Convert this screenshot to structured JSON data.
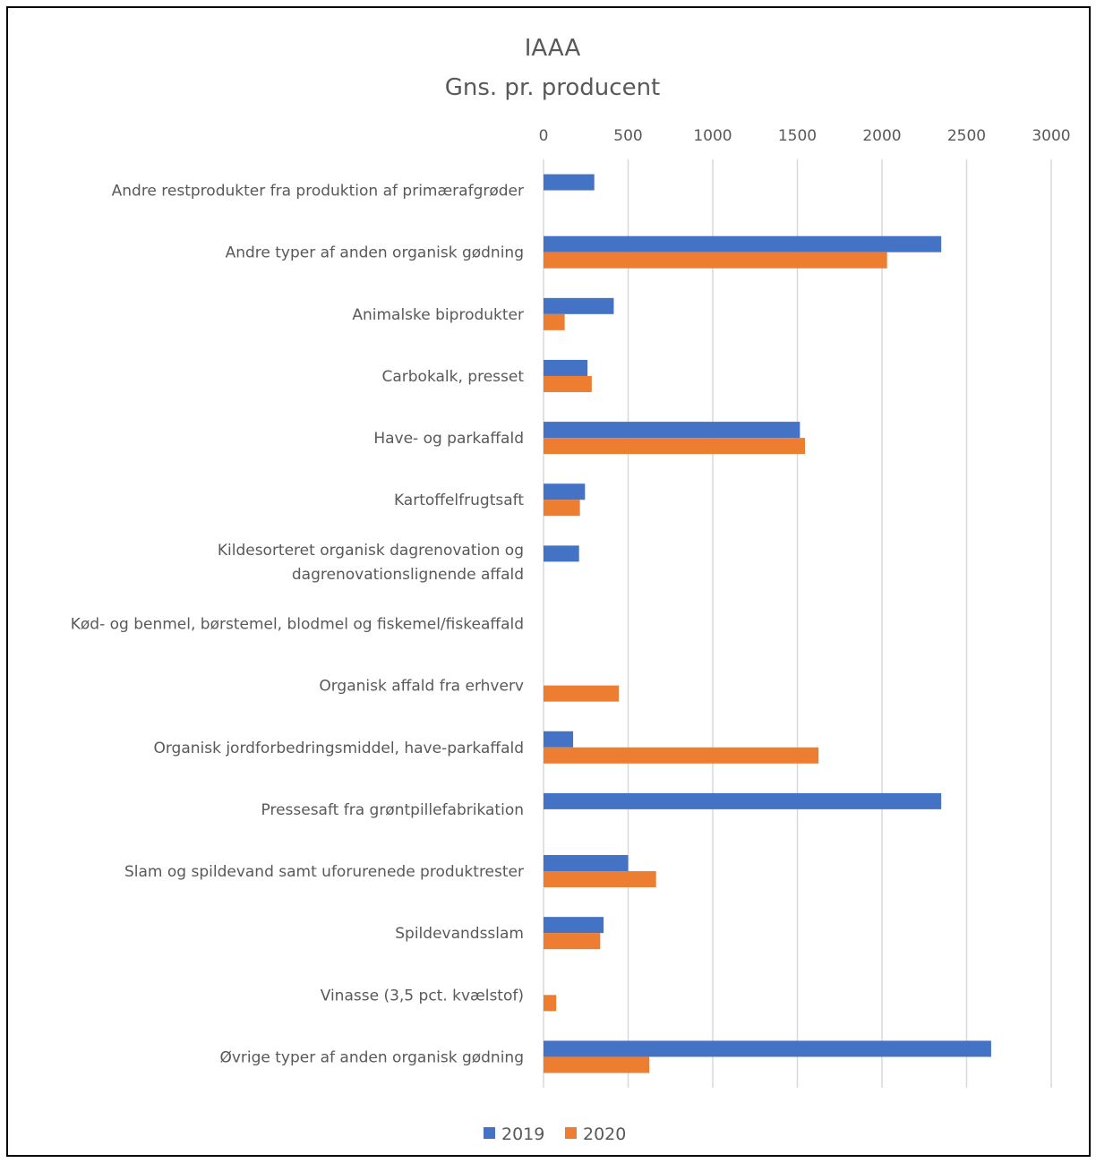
{
  "chart_data": {
    "type": "bar",
    "orientation": "horizontal",
    "title_lines": [
      "IAAA",
      "Gns. pr. producent"
    ],
    "xlim": [
      0,
      3000
    ],
    "x_ticks": [
      "0",
      "500",
      "1000",
      "1500",
      "2000",
      "2500",
      "3000"
    ],
    "x_tick_values": [
      0,
      500,
      1000,
      1500,
      2000,
      2500,
      3000
    ],
    "grid": true,
    "legend_position": "bottom",
    "categories": [
      [
        "Andre restprodukter fra produktion af primærafgrøder"
      ],
      [
        "Andre typer af anden organisk gødning"
      ],
      [
        "Animalske biprodukter"
      ],
      [
        "Carbokalk, presset"
      ],
      [
        "Have- og parkaffald"
      ],
      [
        "Kartoffelfrugtsaft"
      ],
      [
        "Kildesorteret organisk dagrenovation og",
        "dagrenovationslignende affald"
      ],
      [
        "Kød- og benmel, børstemel, blodmel og fiskemel/fiskeaffald"
      ],
      [
        "Organisk affald fra erhverv"
      ],
      [
        "Organisk jordforbedringsmiddel, have-parkaffald"
      ],
      [
        "Pressesaft fra grøntpillefabrikation"
      ],
      [
        "Slam og spildevand samt uforurenede produktrester"
      ],
      [
        "Spildevandsslam"
      ],
      [
        "Vinasse (3,5 pct. kvælstof)"
      ],
      [
        "Øvrige typer af anden organisk gødning"
      ]
    ],
    "series": [
      {
        "name": "2019",
        "color": "#4472c4",
        "values": [
          300,
          2350,
          415,
          260,
          1515,
          245,
          210,
          0,
          0,
          175,
          2350,
          500,
          355,
          0,
          2645
        ]
      },
      {
        "name": "2020",
        "color": "#ed7d31",
        "values": [
          0,
          2030,
          125,
          285,
          1545,
          215,
          0,
          0,
          445,
          1625,
          0,
          665,
          335,
          75,
          625
        ]
      }
    ]
  }
}
